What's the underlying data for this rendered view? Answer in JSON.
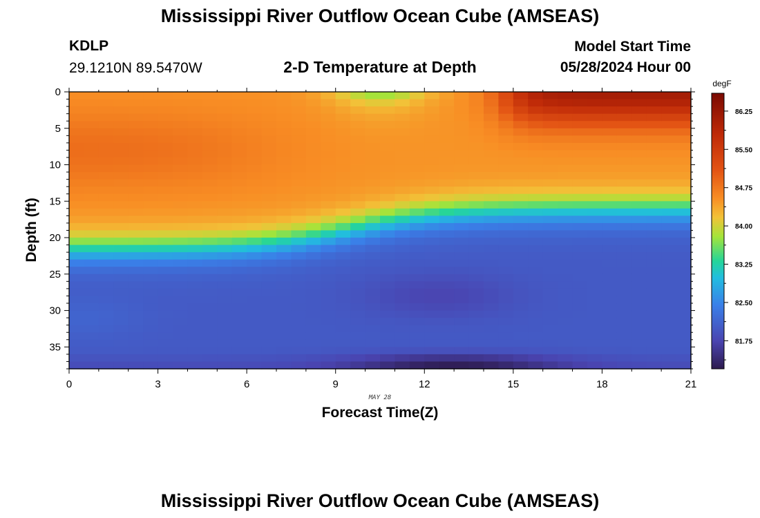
{
  "header": {
    "title": "Mississippi River Outflow Ocean Cube (AMSEAS)",
    "station_id": "KDLP",
    "station_coords": "29.1210N  89.5470W",
    "subtitle": "2-D Temperature at Depth",
    "model_start_label": "Model Start Time",
    "model_start_value": "05/28/2024 Hour 00"
  },
  "footer": {
    "title": "Mississippi River Outflow Ocean Cube (AMSEAS)"
  },
  "chart_data": {
    "type": "heatmap",
    "title": "2-D Temperature at Depth",
    "xlabel": "Forecast Time(Z)",
    "ylabel": "Depth (ft)",
    "x_annotation": "MAY 28",
    "xlim": [
      0,
      21
    ],
    "ylim": [
      0,
      38
    ],
    "y_inverted": true,
    "x_ticks": [
      0,
      3,
      6,
      9,
      12,
      15,
      18,
      21
    ],
    "y_ticks": [
      0,
      5,
      10,
      15,
      20,
      25,
      30,
      35
    ],
    "colorbar": {
      "unit": "degF",
      "range": [
        81.2,
        86.6
      ],
      "ticks": [
        "86.25",
        "85.50",
        "84.75",
        "84.00",
        "83.25",
        "82.50",
        "81.75"
      ]
    },
    "approx_structure": [
      {
        "region": "surface layer, hours 0-8, depth 0-19 ft",
        "temperature_degF": 84.4
      },
      {
        "region": "surface warm core, hours 15-21, depth 0-5 ft",
        "temperature_degF": 86.2
      },
      {
        "region": "surface cooler patch, hours 9-12, depth 0-2 ft",
        "temperature_degF": 83.4
      },
      {
        "region": "thermocline, depth ~20-24 ft (hours 0-8), ~15-18 ft (hours 12-21)",
        "temperature_degF": 82.6
      },
      {
        "region": "lower layer, depth 25-36 ft",
        "temperature_degF": 81.9
      },
      {
        "region": "cold bottom minimum, hours 11-15, depth 37-38 ft",
        "temperature_degF": 81.3
      }
    ]
  }
}
